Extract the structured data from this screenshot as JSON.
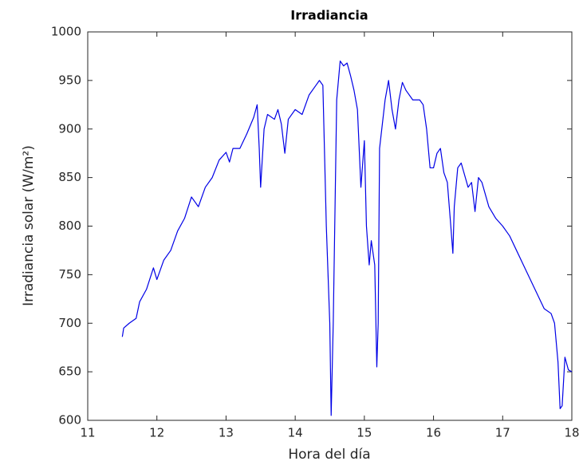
{
  "chart_data": {
    "type": "line",
    "title": "Irradiancia",
    "xlabel": "Hora del día",
    "ylabel": "Irradiancia solar (W/m²)",
    "color": "#0000e6",
    "x": [
      11.5,
      11.52,
      11.6,
      11.7,
      11.75,
      11.85,
      11.95,
      12.0,
      12.1,
      12.2,
      12.3,
      12.4,
      12.5,
      12.55,
      12.6,
      12.7,
      12.8,
      12.9,
      13.0,
      13.05,
      13.1,
      13.2,
      13.3,
      13.4,
      13.45,
      13.48,
      13.5,
      13.55,
      13.6,
      13.7,
      13.75,
      13.8,
      13.85,
      13.9,
      14.0,
      14.1,
      14.2,
      14.3,
      14.35,
      14.4,
      14.45,
      14.5,
      14.52,
      14.55,
      14.6,
      14.65,
      14.7,
      14.75,
      14.8,
      14.85,
      14.9,
      14.95,
      15.0,
      15.03,
      15.07,
      15.1,
      15.15,
      15.18,
      15.2,
      15.22,
      15.3,
      15.35,
      15.4,
      15.45,
      15.5,
      15.55,
      15.6,
      15.7,
      15.8,
      15.85,
      15.9,
      15.95,
      16.0,
      16.05,
      16.1,
      16.15,
      16.2,
      16.25,
      16.28,
      16.3,
      16.35,
      16.4,
      16.5,
      16.55,
      16.6,
      16.65,
      16.7,
      16.8,
      16.9,
      17.0,
      17.1,
      17.2,
      17.3,
      17.4,
      17.5,
      17.6,
      17.7,
      17.75,
      17.8,
      17.83,
      17.86,
      17.9,
      17.95,
      18.0
    ],
    "values": [
      686,
      695,
      700,
      705,
      722,
      735,
      757,
      745,
      765,
      775,
      795,
      808,
      830,
      825,
      820,
      840,
      850,
      868,
      876,
      866,
      880,
      880,
      895,
      912,
      925,
      880,
      840,
      900,
      915,
      910,
      920,
      905,
      875,
      910,
      920,
      915,
      935,
      945,
      950,
      945,
      800,
      700,
      605,
      700,
      930,
      970,
      965,
      968,
      955,
      940,
      920,
      840,
      888,
      800,
      760,
      785,
      760,
      655,
      700,
      880,
      930,
      950,
      920,
      900,
      930,
      948,
      940,
      930,
      930,
      925,
      900,
      860,
      860,
      875,
      880,
      855,
      845,
      800,
      772,
      820,
      860,
      865,
      840,
      845,
      815,
      850,
      845,
      820,
      808,
      800,
      790,
      775,
      760,
      745,
      730,
      715,
      710,
      700,
      660,
      612,
      615,
      665,
      652,
      650
    ],
    "xlim": [
      11,
      18
    ],
    "xticks": [
      11,
      12,
      13,
      14,
      15,
      16,
      17,
      18
    ],
    "ylim": [
      600,
      1000
    ],
    "yticks": [
      600,
      650,
      700,
      750,
      800,
      850,
      900,
      950,
      1000
    ]
  }
}
